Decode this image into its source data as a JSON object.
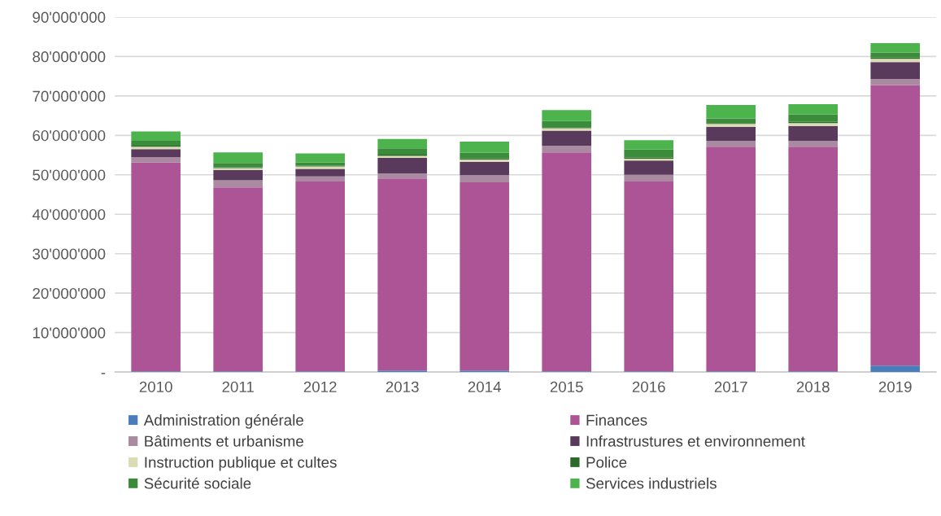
{
  "chart_data": {
    "type": "bar",
    "stacked": true,
    "categories": [
      "2010",
      "2011",
      "2012",
      "2013",
      "2014",
      "2015",
      "2016",
      "2017",
      "2018",
      "2019"
    ],
    "series": [
      {
        "name": "Administration générale",
        "color": "#4a7ebb",
        "values": [
          200000,
          200000,
          200000,
          400000,
          400000,
          200000,
          200000,
          200000,
          200000,
          1600000
        ]
      },
      {
        "name": "Finances",
        "color": "#ad5496",
        "values": [
          52900000,
          46600000,
          48100000,
          48700000,
          47700000,
          55500000,
          48100000,
          56900000,
          56900000,
          71100000
        ]
      },
      {
        "name": "Bâtiments et urbanisme",
        "color": "#a98aa0",
        "values": [
          1400000,
          1800000,
          1300000,
          1200000,
          1800000,
          1700000,
          1700000,
          1500000,
          1500000,
          1600000
        ]
      },
      {
        "name": "Infrastrustures et environnement",
        "color": "#5a3a5c",
        "values": [
          2000000,
          2600000,
          1900000,
          4000000,
          3400000,
          3800000,
          3600000,
          3600000,
          3800000,
          4300000
        ]
      },
      {
        "name": "Instruction publique et cultes",
        "color": "#dcdcb4",
        "values": [
          600000,
          500000,
          600000,
          500000,
          600000,
          600000,
          500000,
          700000,
          700000,
          800000
        ]
      },
      {
        "name": "Police",
        "color": "#2a6a2a",
        "values": [
          300000,
          200000,
          200000,
          300000,
          300000,
          300000,
          300000,
          200000,
          300000,
          300000
        ]
      },
      {
        "name": "Sécurité sociale",
        "color": "#3a8c3a",
        "values": [
          1200000,
          1100000,
          800000,
          1600000,
          1400000,
          1500000,
          2000000,
          1200000,
          1900000,
          1300000
        ]
      },
      {
        "name": "Services industriels",
        "color": "#4db34d",
        "values": [
          2400000,
          2700000,
          2300000,
          2400000,
          2800000,
          2800000,
          2400000,
          3400000,
          2600000,
          2400000
        ]
      }
    ],
    "ylim": [
      0,
      90000000
    ],
    "yticks": [
      {
        "value": 0,
        "label": "-"
      },
      {
        "value": 10000000,
        "label": "10'000'000"
      },
      {
        "value": 20000000,
        "label": "20'000'000"
      },
      {
        "value": 30000000,
        "label": "30'000'000"
      },
      {
        "value": 40000000,
        "label": "40'000'000"
      },
      {
        "value": 50000000,
        "label": "50'000'000"
      },
      {
        "value": 60000000,
        "label": "60'000'000"
      },
      {
        "value": 70000000,
        "label": "70'000'000"
      },
      {
        "value": 80000000,
        "label": "80'000'000"
      },
      {
        "value": 90000000,
        "label": "90'000'000"
      }
    ],
    "grid": "y",
    "legend": "bottom"
  }
}
